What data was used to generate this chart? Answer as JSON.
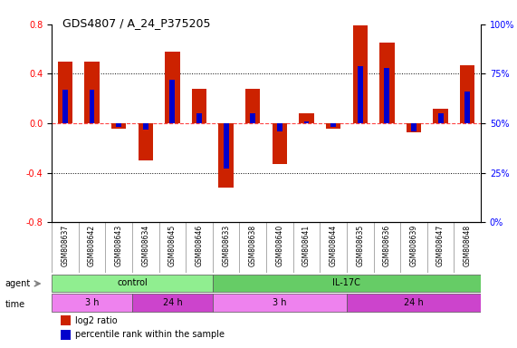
{
  "title": "GDS4807 / A_24_P375205",
  "samples": [
    "GSM808637",
    "GSM808642",
    "GSM808643",
    "GSM808634",
    "GSM808645",
    "GSM808646",
    "GSM808633",
    "GSM808638",
    "GSM808640",
    "GSM808641",
    "GSM808644",
    "GSM808635",
    "GSM808636",
    "GSM808639",
    "GSM808647",
    "GSM808648"
  ],
  "log2_ratio": [
    0.5,
    0.5,
    -0.04,
    -0.3,
    0.58,
    0.28,
    -0.52,
    0.28,
    -0.33,
    0.08,
    -0.04,
    0.79,
    0.65,
    -0.07,
    0.12,
    0.47
  ],
  "pct_rank": [
    0.34,
    0.35,
    -0.02,
    -0.06,
    0.38,
    0.07,
    -0.46,
    0.07,
    -0.09,
    0.025,
    -0.02,
    0.42,
    0.4,
    -0.045,
    0.07,
    0.31
  ],
  "pct_rank_raw": [
    67,
    67,
    48,
    47,
    72,
    55,
    27,
    55,
    46,
    51,
    48,
    79,
    78,
    46,
    55,
    66
  ],
  "agent_groups": [
    {
      "label": "control",
      "start": 0,
      "end": 6,
      "color": "#90EE90"
    },
    {
      "label": "IL-17C",
      "start": 6,
      "end": 16,
      "color": "#66CC66"
    }
  ],
  "time_groups": [
    {
      "label": "3 h",
      "start": 0,
      "end": 3,
      "color": "#EE82EE"
    },
    {
      "label": "24 h",
      "start": 3,
      "end": 6,
      "color": "#CC44CC"
    },
    {
      "label": "3 h",
      "start": 6,
      "end": 11,
      "color": "#EE82EE"
    },
    {
      "label": "24 h",
      "start": 11,
      "end": 16,
      "color": "#CC44CC"
    }
  ],
  "ylim": [
    -0.8,
    0.8
  ],
  "yticks_left": [
    -0.8,
    -0.4,
    0.0,
    0.4,
    0.8
  ],
  "yticks_right": [
    0,
    25,
    50,
    75,
    100
  ],
  "bar_color_red": "#CC2200",
  "bar_color_blue": "#0000CC",
  "zero_line_color": "#FF4444",
  "grid_color": "#000000",
  "bg_color": "#FFFFFF",
  "legend_red": "log2 ratio",
  "legend_blue": "percentile rank within the sample"
}
